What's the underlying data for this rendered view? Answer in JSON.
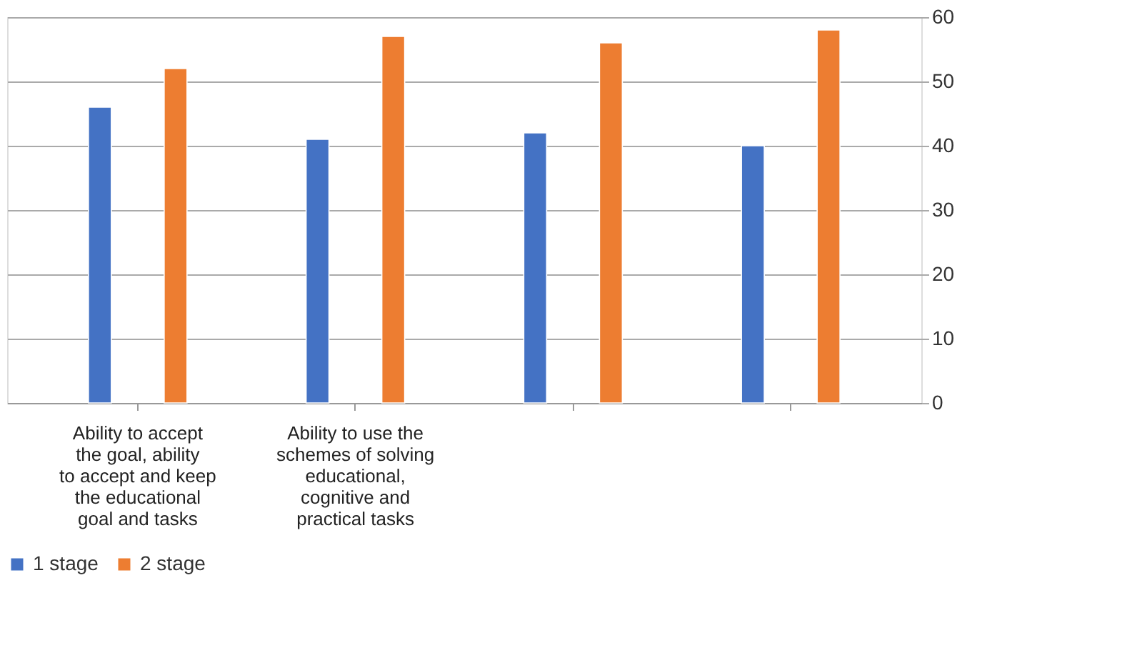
{
  "chart_data": {
    "type": "bar",
    "categories": [
      "Ability to accept the goal, ability to accept and keep the educational goal and tasks",
      "Ability to use the schemes of solving educational, cognitive and practical tasks",
      null,
      null
    ],
    "series": [
      {
        "name": "1 stage",
        "color": "#4472c4",
        "values": [
          46,
          41,
          42,
          40
        ]
      },
      {
        "name": "2 stage",
        "color": "#ed7d31",
        "values": [
          52,
          57,
          56,
          58
        ]
      }
    ],
    "ylim": [
      0,
      60
    ],
    "yticks": [
      0,
      10,
      20,
      30,
      40,
      50,
      60
    ],
    "grid": "y",
    "legend": "bottom"
  }
}
